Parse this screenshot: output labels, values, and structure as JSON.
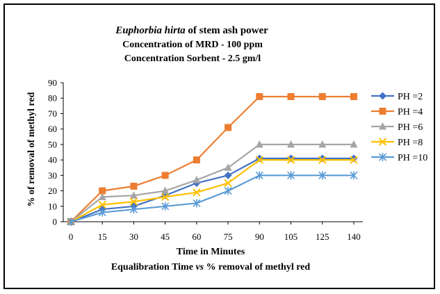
{
  "chart_data": {
    "type": "line",
    "title_italic": "Euphorbia hirta",
    "title_rest": " of stem ash power",
    "subtitle_lines": [
      "Concentration  of MRD  - 100 ppm",
      "Concentration  Sorbent  - 2.5 gm/l"
    ],
    "xlabel": "Time in Minutes",
    "caption_pre": "Equalibration  Time ",
    "caption_vs": "vs",
    "caption_post": " % removal  of methyl red",
    "ylabel": "% of removal  of methyl red",
    "categories": [
      "0",
      "15",
      "30",
      "45",
      "60",
      "75",
      "90",
      "105",
      "125",
      "140"
    ],
    "ylim": [
      0,
      90
    ],
    "yticks": [
      0,
      10,
      20,
      30,
      40,
      50,
      60,
      70,
      80,
      90
    ],
    "grid": false,
    "legend_position": "right",
    "series": [
      {
        "name": "PH =2",
        "color": "#4472C4",
        "marker": "diamond",
        "values": [
          0,
          8,
          10,
          17,
          25,
          30,
          41,
          41,
          41,
          41
        ]
      },
      {
        "name": "PH =4",
        "color": "#ED7D31",
        "marker": "square",
        "values": [
          0,
          20,
          23,
          30,
          40,
          61,
          81,
          81,
          81,
          81
        ]
      },
      {
        "name": "PH =6",
        "color": "#A5A5A5",
        "marker": "triangle",
        "values": [
          0,
          16,
          17,
          20,
          27,
          35,
          50,
          50,
          50,
          50
        ]
      },
      {
        "name": "PH =8",
        "color": "#FFC000",
        "marker": "x",
        "values": [
          0,
          11,
          13,
          16,
          19,
          25,
          40,
          40,
          40,
          40
        ]
      },
      {
        "name": "PH =10",
        "color": "#5B9BD5",
        "marker": "star",
        "values": [
          0,
          6,
          8,
          10,
          12,
          20,
          30,
          30,
          30,
          30
        ]
      }
    ]
  }
}
